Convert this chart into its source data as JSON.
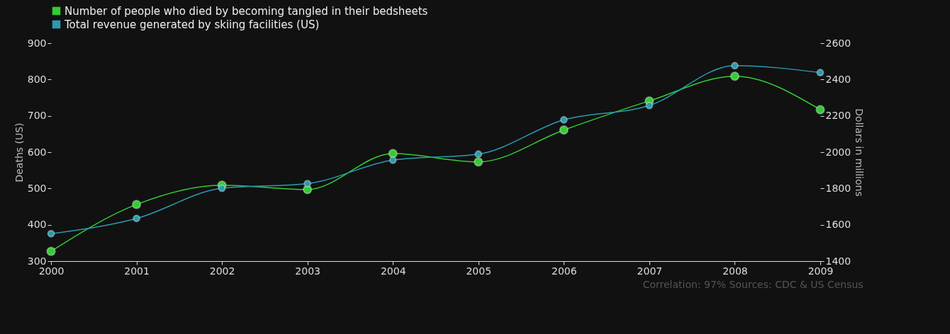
{
  "chart_data": {
    "type": "line",
    "x": [
      2000,
      2001,
      2002,
      2003,
      2004,
      2005,
      2006,
      2007,
      2008,
      2009
    ],
    "xlim": [
      2000,
      2009
    ],
    "xticks": [
      2000,
      2001,
      2002,
      2003,
      2004,
      2005,
      2006,
      2007,
      2008,
      2009
    ],
    "ylabel": "Deaths (US)",
    "y2label": "Dollars in millions",
    "ylim": [
      300,
      900
    ],
    "yticks": [
      300,
      400,
      500,
      600,
      700,
      800,
      900
    ],
    "y2lim": [
      1400,
      2600
    ],
    "y2ticks": [
      1400,
      1600,
      1800,
      2000,
      2200,
      2400,
      2600
    ],
    "series": [
      {
        "name": "Number of people who died by becoming tangled in their bedsheets",
        "color": "#33cc33",
        "values": [
          327,
          456,
          509,
          497,
          596,
          573,
          661,
          741,
          809,
          717
        ]
      },
      {
        "name": "Total revenue generated by skiing facilities (US)",
        "color": "#2a9bb0",
        "axis": "y2",
        "values": [
          1551,
          1635,
          1801,
          1827,
          1956,
          1989,
          2178,
          2257,
          2476,
          2438
        ]
      }
    ],
    "marker": "circle",
    "line_style": "solid",
    "grid": false,
    "legend": "top left",
    "annotations": [
      "Correlation: 97%",
      "Sources: CDC & US Census"
    ]
  }
}
